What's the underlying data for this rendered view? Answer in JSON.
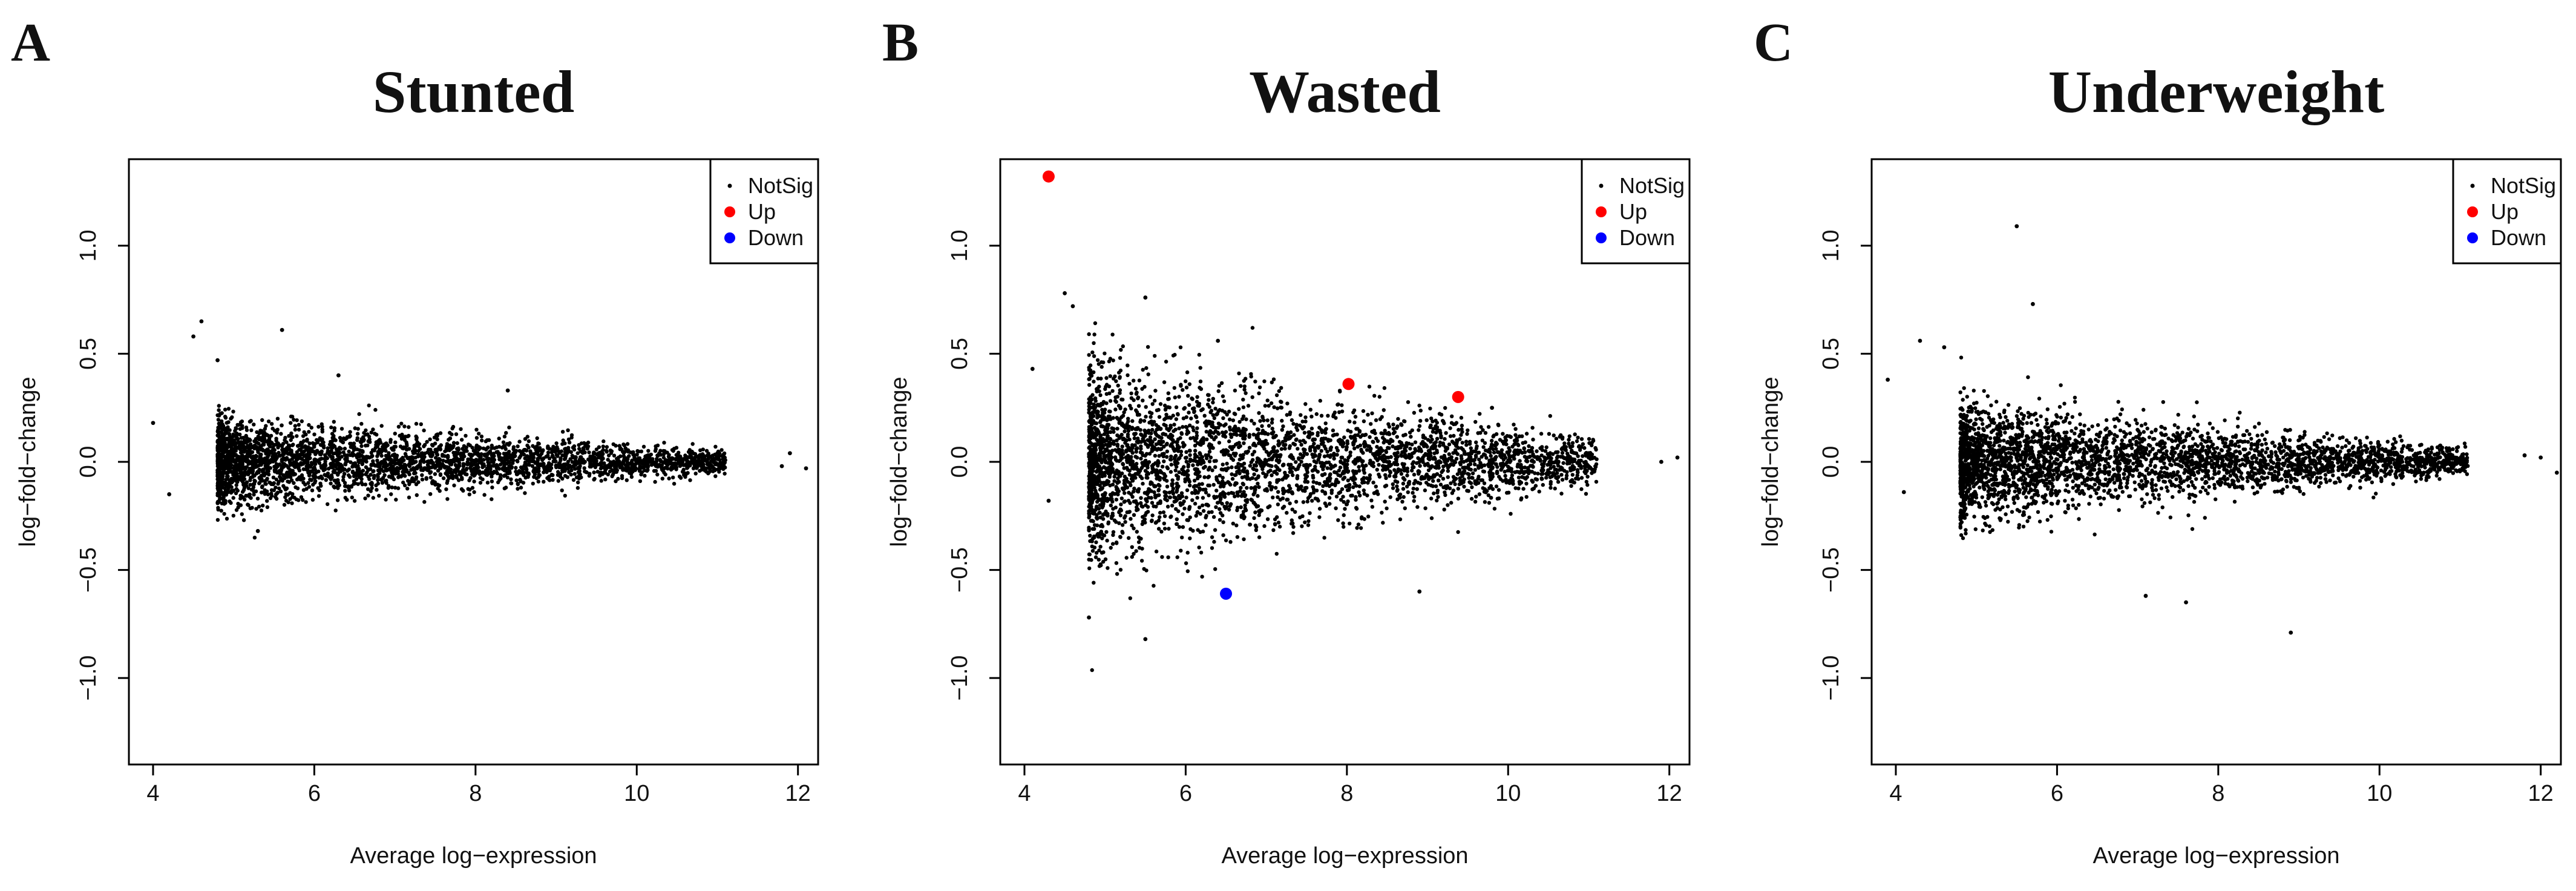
{
  "figure": {
    "colors": {
      "notsig": "#000000",
      "up": "#ff0000",
      "down": "#0000ff"
    }
  },
  "chart_data": [
    {
      "id": "A",
      "panel_letter": "A",
      "type": "scatter",
      "title": "Stunted",
      "xlabel": "Average log−expression",
      "ylabel": "log−fold−change",
      "xlim": [
        3.7,
        12.25
      ],
      "ylim": [
        -1.4,
        1.4
      ],
      "xticks": [
        4,
        6,
        8,
        10,
        12
      ],
      "yticks": [
        -1.0,
        -0.5,
        0.0,
        0.5,
        1.0
      ],
      "ytick_labels": [
        "−1.0",
        "−0.5",
        "0.0",
        "0.5",
        "1.0"
      ],
      "legend": {
        "position": "top-right",
        "entries": [
          "NotSig",
          "Up",
          "Down"
        ]
      },
      "cloud": {
        "n": 3200,
        "x_range": [
          4.8,
          11.1
        ],
        "spread_at_left": 0.1,
        "spread_at_right": 0.025
      },
      "notsig_outliers": [
        [
          4.0,
          0.18
        ],
        [
          4.2,
          -0.15
        ],
        [
          4.6,
          0.65
        ],
        [
          5.6,
          0.61
        ],
        [
          4.5,
          0.58
        ],
        [
          4.8,
          0.47
        ],
        [
          11.9,
          0.04
        ],
        [
          12.1,
          -0.03
        ],
        [
          11.8,
          -0.02
        ],
        [
          6.3,
          0.4
        ],
        [
          8.4,
          0.33
        ],
        [
          5.3,
          -0.32
        ]
      ],
      "up": [],
      "down": []
    },
    {
      "id": "B",
      "panel_letter": "B",
      "type": "scatter",
      "title": "Wasted",
      "xlabel": "Average log−expression",
      "ylabel": "log−fold−change",
      "xlim": [
        3.7,
        12.25
      ],
      "ylim": [
        -1.4,
        1.4
      ],
      "xticks": [
        4,
        6,
        8,
        10,
        12
      ],
      "yticks": [
        -1.0,
        -0.5,
        0.0,
        0.5,
        1.0
      ],
      "ytick_labels": [
        "−1.0",
        "−0.5",
        "0.0",
        "0.5",
        "1.0"
      ],
      "legend": {
        "position": "top-right",
        "entries": [
          "NotSig",
          "Up",
          "Down"
        ]
      },
      "cloud": {
        "n": 3600,
        "x_range": [
          4.8,
          11.1
        ],
        "spread_at_left": 0.22,
        "spread_at_right": 0.05
      },
      "notsig_outliers": [
        [
          4.5,
          0.78
        ],
        [
          4.6,
          0.72
        ],
        [
          5.5,
          0.76
        ],
        [
          4.1,
          0.43
        ],
        [
          6.4,
          0.56
        ],
        [
          4.8,
          -0.72
        ],
        [
          5.5,
          -0.82
        ],
        [
          8.9,
          -0.6
        ],
        [
          11.9,
          0.0
        ],
        [
          12.1,
          0.02
        ],
        [
          4.3,
          -0.18
        ],
        [
          9.8,
          0.25
        ]
      ],
      "up": [
        [
          4.3,
          1.32
        ],
        [
          8.02,
          0.36
        ],
        [
          9.38,
          0.3
        ]
      ],
      "down": [
        [
          6.5,
          -0.61
        ]
      ]
    },
    {
      "id": "C",
      "panel_letter": "C",
      "type": "scatter",
      "title": "Underweight",
      "xlabel": "Average log−expression",
      "ylabel": "log−fold−change",
      "xlim": [
        3.7,
        12.25
      ],
      "ylim": [
        -1.4,
        1.4
      ],
      "xticks": [
        4,
        6,
        8,
        10,
        12
      ],
      "yticks": [
        -1.0,
        -0.5,
        0.0,
        0.5,
        1.0
      ],
      "ytick_labels": [
        "−1.0",
        "−0.5",
        "0.0",
        "0.5",
        "1.0"
      ],
      "legend": {
        "position": "top-right",
        "entries": [
          "NotSig",
          "Up",
          "Down"
        ]
      },
      "cloud": {
        "n": 3400,
        "x_range": [
          4.8,
          11.1
        ],
        "spread_at_left": 0.13,
        "spread_at_right": 0.03
      },
      "notsig_outliers": [
        [
          5.5,
          1.09
        ],
        [
          5.7,
          0.73
        ],
        [
          4.3,
          0.56
        ],
        [
          4.6,
          0.53
        ],
        [
          3.9,
          0.38
        ],
        [
          4.1,
          -0.14
        ],
        [
          7.1,
          -0.62
        ],
        [
          7.6,
          -0.65
        ],
        [
          8.9,
          -0.79
        ],
        [
          11.8,
          0.03
        ],
        [
          12.0,
          0.02
        ],
        [
          12.2,
          -0.05
        ]
      ],
      "up": [],
      "down": []
    }
  ]
}
